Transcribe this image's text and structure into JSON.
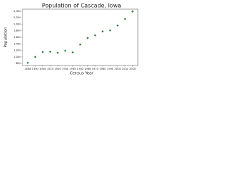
{
  "chart_data": {
    "type": "scatter",
    "title": "Population of Cascade, Iowa",
    "x_label": "Census Year",
    "y_label": "Population",
    "x": [
      1880,
      1890,
      1900,
      1910,
      1920,
      1930,
      1940,
      1950,
      1960,
      1970,
      1980,
      1990,
      2000,
      2010,
      2020
    ],
    "series": [
      {
        "name": "Population",
        "color": "#2e7d32",
        "values": [
          820,
          1000,
          1150,
          1160,
          1130,
          1190,
          1140,
          1380,
          1580,
          1660,
          1780,
          1810,
          1960,
          2160,
          2390
        ]
      }
    ],
    "xlim": [
      1873,
      2027
    ],
    "xticks": [
      1880,
      1890,
      1900,
      1910,
      1920,
      1930,
      1940,
      1950,
      1960,
      1970,
      1980,
      1990,
      2000,
      2010,
      2020
    ],
    "ylim": [
      740,
      2460
    ],
    "yticks": [
      800,
      {
        "value": 1000,
        "label": "1,000"
      },
      {
        "value": 1200,
        "label": "1,200"
      },
      {
        "value": 1400,
        "label": "1,400"
      },
      {
        "value": 1600,
        "label": "1,600"
      },
      {
        "value": 1800,
        "label": "1,800"
      },
      {
        "value": 2000,
        "label": "2,000"
      },
      {
        "value": 2200,
        "label": "2,200"
      },
      {
        "value": 2400,
        "label": "2,400"
      }
    ],
    "grid": false
  }
}
